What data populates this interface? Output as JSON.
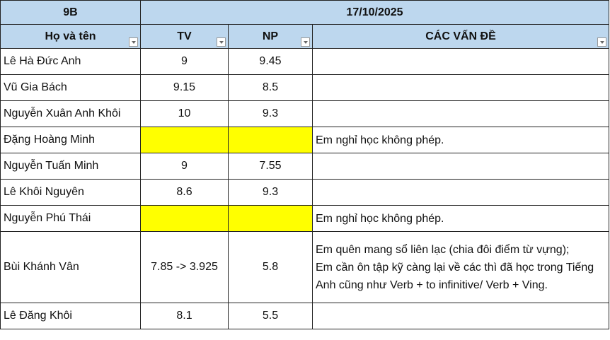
{
  "header": {
    "class": "9B",
    "date": "17/10/2025"
  },
  "columns": [
    "Họ và tên",
    "TV",
    "NP",
    "CÁC VẤN ĐỀ"
  ],
  "highlight_color": "#ffff00",
  "header_color": "#bdd7ee",
  "rows": [
    {
      "name": "Lê Hà Đức Anh",
      "tv": "9",
      "np": "9.45",
      "note": ""
    },
    {
      "name": "Vũ Gia Bách",
      "tv": "9.15",
      "np": "8.5",
      "note": ""
    },
    {
      "name": "Nguyễn Xuân Anh Khôi",
      "tv": "10",
      "np": "9.3",
      "note": ""
    },
    {
      "name": "Đặng Hoàng Minh",
      "tv": "",
      "np": "",
      "note": "Em nghỉ học không phép."
    },
    {
      "name": "Nguyễn Tuấn Minh",
      "tv": "9",
      "np": "7.55",
      "note": ""
    },
    {
      "name": "Lê Khôi Nguyên",
      "tv": "8.6",
      "np": "9.3",
      "note": ""
    },
    {
      "name": "Nguyễn Phú Thái",
      "tv": "",
      "np": "",
      "note": "Em nghỉ học không phép."
    },
    {
      "name": "Bùi Khánh Vân",
      "tv": "7.85 -> 3.925",
      "np": "5.8",
      "note": "Em quên mang sổ liên lạc (chia đôi điểm từ vựng);\nEm cần ôn tập kỹ càng lại về các thì đã học trong Tiếng Anh cũng như Verb + to infinitive/ Verb + Ving."
    },
    {
      "name": "Lê Đăng Khôi",
      "tv": "8.1",
      "np": "5.5",
      "note": ""
    }
  ]
}
